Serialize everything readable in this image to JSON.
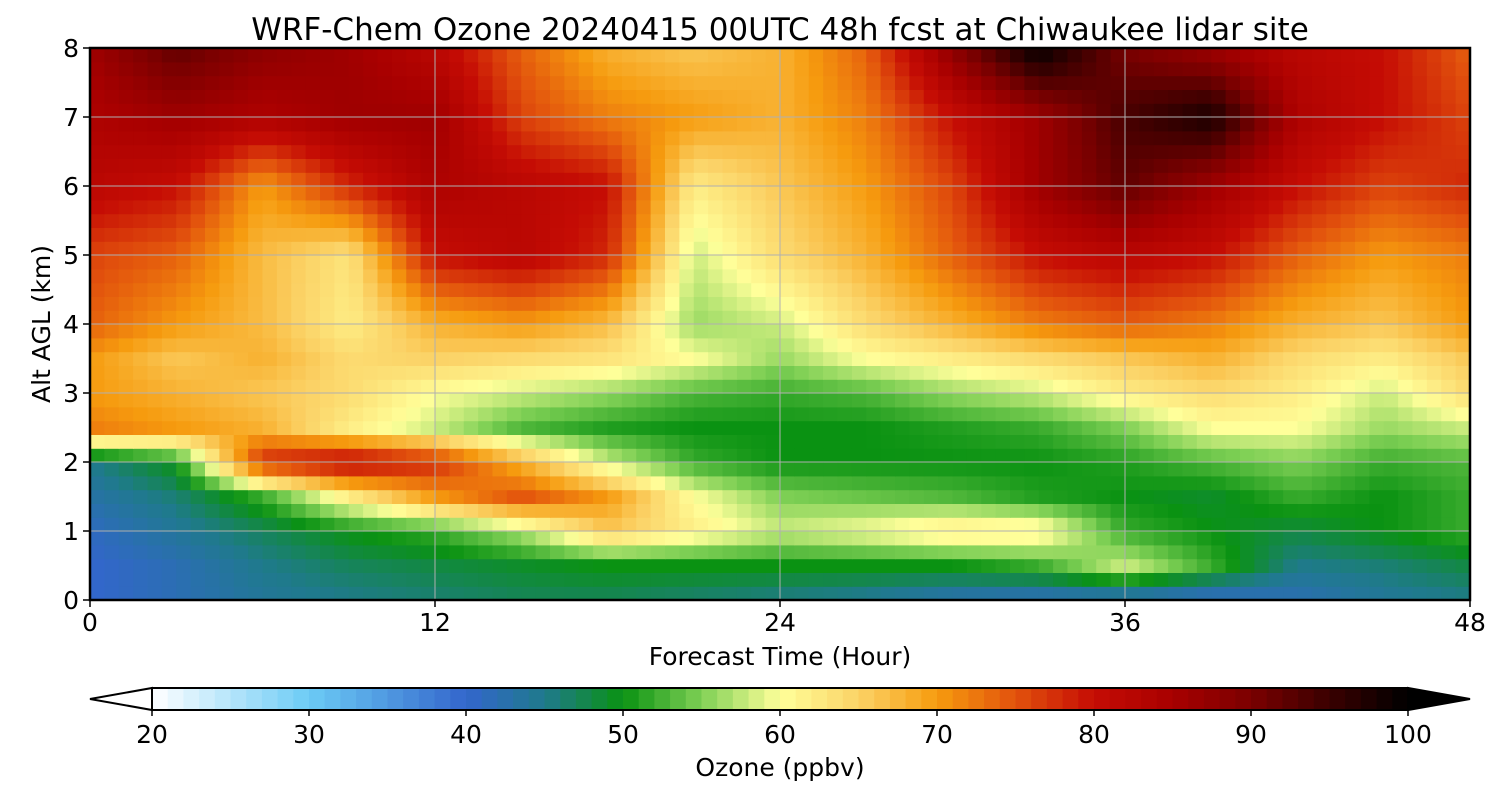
{
  "chart_data": {
    "type": "heatmap",
    "title": "WRF-Chem Ozone  20240415 00UTC 48h fcst at Chiwaukee lidar site",
    "xlabel": "Forecast Time (Hour)",
    "ylabel": "Alt AGL (km)",
    "xlim": [
      0,
      48
    ],
    "ylim": [
      0,
      8
    ],
    "x_ticks": [
      0,
      12,
      24,
      36,
      48
    ],
    "y_ticks": [
      0,
      1,
      2,
      3,
      4,
      5,
      6,
      7,
      8
    ],
    "grid": true,
    "x": [
      0,
      3,
      6,
      9,
      12,
      15,
      18,
      21,
      24,
      27,
      30,
      33,
      36,
      39,
      42,
      45,
      48
    ],
    "y": [
      0,
      0.5,
      1,
      1.5,
      2,
      2.5,
      3,
      3.5,
      4,
      5,
      6,
      7,
      8
    ],
    "z": [
      [
        40,
        42,
        44,
        45,
        46,
        47,
        47,
        46,
        45,
        44,
        42,
        41,
        41,
        40,
        42,
        44,
        45
      ],
      [
        40,
        42,
        45,
        47,
        48,
        49,
        50,
        50,
        50,
        50,
        50,
        52,
        58,
        52,
        45,
        46,
        48
      ],
      [
        41,
        44,
        47,
        50,
        52,
        57,
        66,
        62,
        58,
        60,
        63,
        62,
        52,
        50,
        48,
        50,
        52
      ],
      [
        43,
        46,
        52,
        62,
        70,
        75,
        70,
        60,
        55,
        54,
        53,
        51,
        50,
        49,
        52,
        50,
        52
      ],
      [
        45,
        50,
        78,
        82,
        78,
        68,
        58,
        52,
        50,
        50,
        50,
        50,
        51,
        53,
        55,
        52,
        53
      ],
      [
        72,
        70,
        68,
        62,
        58,
        53,
        51,
        50,
        50,
        50,
        51,
        52,
        55,
        60,
        60,
        56,
        58
      ],
      [
        70,
        68,
        66,
        64,
        60,
        58,
        56,
        53,
        52,
        53,
        56,
        58,
        62,
        64,
        62,
        58,
        64
      ],
      [
        70,
        66,
        68,
        64,
        65,
        64,
        63,
        60,
        56,
        60,
        62,
        64,
        66,
        68,
        64,
        62,
        66
      ],
      [
        74,
        70,
        67,
        62,
        68,
        70,
        67,
        56,
        58,
        64,
        68,
        72,
        74,
        72,
        68,
        66,
        70
      ],
      [
        76,
        74,
        67,
        63,
        80,
        82,
        78,
        58,
        64,
        68,
        74,
        80,
        82,
        80,
        74,
        70,
        72
      ],
      [
        82,
        80,
        70,
        78,
        84,
        82,
        80,
        62,
        66,
        70,
        76,
        86,
        92,
        86,
        80,
        76,
        78
      ],
      [
        84,
        86,
        84,
        86,
        86,
        76,
        72,
        70,
        68,
        72,
        80,
        86,
        94,
        98,
        84,
        80,
        76
      ],
      [
        86,
        92,
        88,
        86,
        82,
        74,
        68,
        66,
        68,
        74,
        88,
        100,
        90,
        86,
        82,
        80,
        74
      ]
    ],
    "colorbar": {
      "label": "Ozone  (ppbv)",
      "min": 20,
      "max": 100,
      "ticks": [
        20,
        30,
        40,
        50,
        60,
        70,
        80,
        90,
        100
      ],
      "extend": "both",
      "orientation": "horizontal",
      "placement": "bottom"
    },
    "colormap_stops": [
      {
        "value": 20,
        "color": "#ffffff"
      },
      {
        "value": 30,
        "color": "#6ccbf5"
      },
      {
        "value": 40,
        "color": "#3366cc"
      },
      {
        "value": 45,
        "color": "#1f7a8c"
      },
      {
        "value": 50,
        "color": "#0a9212"
      },
      {
        "value": 55,
        "color": "#7fd055"
      },
      {
        "value": 60,
        "color": "#ffff9a"
      },
      {
        "value": 65,
        "color": "#fbd266"
      },
      {
        "value": 70,
        "color": "#f69b0e"
      },
      {
        "value": 75,
        "color": "#e2520d"
      },
      {
        "value": 80,
        "color": "#c50c04"
      },
      {
        "value": 85,
        "color": "#a80000"
      },
      {
        "value": 90,
        "color": "#7a0000"
      },
      {
        "value": 95,
        "color": "#3a0000"
      },
      {
        "value": 100,
        "color": "#000000"
      }
    ]
  }
}
